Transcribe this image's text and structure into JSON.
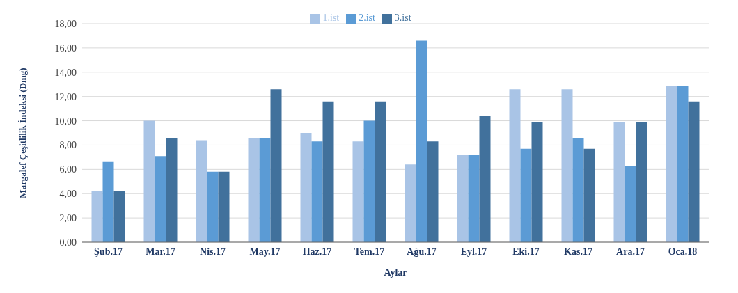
{
  "chart_data": {
    "type": "bar",
    "xlabel": "Aylar",
    "ylabel": "Margalef Çeşitlilik İndeksi (Dmg)",
    "categories": [
      "Şub.17",
      "Mar.17",
      "Nis.17",
      "May.17",
      "Haz.17",
      "Tem.17",
      "Ağu.17",
      "Eyl.17",
      "Eki.17",
      "Kas.17",
      "Ara.17",
      "Oca.18"
    ],
    "series": [
      {
        "name": "1.ist",
        "color": "#a9c4e6",
        "values": [
          4.2,
          10.0,
          8.4,
          8.6,
          9.0,
          8.3,
          6.4,
          7.2,
          12.6,
          12.6,
          9.9,
          12.9
        ]
      },
      {
        "name": "2.ist",
        "color": "#5b9bd5",
        "values": [
          6.6,
          7.1,
          5.8,
          8.6,
          8.3,
          10.0,
          16.6,
          7.2,
          7.7,
          8.6,
          6.3,
          12.9
        ]
      },
      {
        "name": "3.ist",
        "color": "#41719c",
        "values": [
          4.2,
          8.6,
          5.8,
          12.6,
          11.6,
          11.6,
          8.3,
          10.4,
          9.9,
          7.7,
          9.9,
          11.6
        ]
      }
    ],
    "ylim": [
      0,
      18
    ],
    "yticks": [
      {
        "value": 0,
        "label": "0,00"
      },
      {
        "value": 2,
        "label": "2,00"
      },
      {
        "value": 4,
        "label": "4,00"
      },
      {
        "value": 6,
        "label": "6,00"
      },
      {
        "value": 8,
        "label": "8,00"
      },
      {
        "value": 10,
        "label": "10,00"
      },
      {
        "value": 12,
        "label": "12,00"
      },
      {
        "value": 14,
        "label": "14,00"
      },
      {
        "value": 16,
        "label": "16,00"
      },
      {
        "value": 18,
        "label": "18,00"
      }
    ],
    "grid": "y",
    "legend": "top"
  }
}
